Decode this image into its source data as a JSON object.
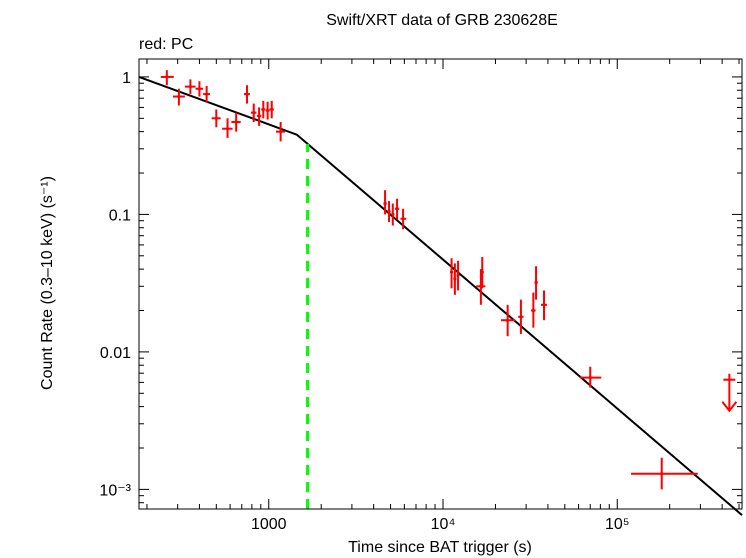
{
  "chart_data": {
    "type": "scatter",
    "title": "Swift/XRT data of GRB 230628E",
    "legend_note": "red: PC",
    "xlabel": "Time since BAT trigger (s)",
    "ylabel": "Count Rate (0.3–10 keV) (s⁻¹)",
    "xscale": "log",
    "yscale": "log",
    "xlim": [
      180,
      520000
    ],
    "ylim": [
      0.00072,
      1.35
    ],
    "x_ticks": [
      {
        "value": 1000,
        "label": "1000"
      },
      {
        "value": 10000,
        "label": "10⁴"
      },
      {
        "value": 100000,
        "label": "10⁵"
      }
    ],
    "y_ticks": [
      {
        "value": 1,
        "label": "1"
      },
      {
        "value": 0.1,
        "label": "0.1"
      },
      {
        "value": 0.01,
        "label": "0.01"
      },
      {
        "value": 0.001,
        "label": "10⁻³"
      }
    ],
    "series": [
      {
        "name": "PC",
        "color": "#ff0000",
        "points": [
          {
            "x": 260,
            "y": 1.0,
            "xerr": [
              240,
              285
            ],
            "yerr": [
              0.87,
              1.12
            ]
          },
          {
            "x": 305,
            "y": 0.72,
            "xerr": [
              282,
              330
            ],
            "yerr": [
              0.62,
              0.82
            ]
          },
          {
            "x": 355,
            "y": 0.85,
            "xerr": [
              330,
              380
            ],
            "yerr": [
              0.75,
              0.96
            ]
          },
          {
            "x": 400,
            "y": 0.82,
            "xerr": [
              380,
              420
            ],
            "yerr": [
              0.72,
              0.93
            ]
          },
          {
            "x": 440,
            "y": 0.75,
            "xerr": [
              420,
              460
            ],
            "yerr": [
              0.65,
              0.86
            ]
          },
          {
            "x": 500,
            "y": 0.5,
            "xerr": [
              470,
              530
            ],
            "yerr": [
              0.43,
              0.58
            ]
          },
          {
            "x": 580,
            "y": 0.42,
            "xerr": [
              540,
              620
            ],
            "yerr": [
              0.36,
              0.5
            ]
          },
          {
            "x": 650,
            "y": 0.47,
            "xerr": [
              610,
              690
            ],
            "yerr": [
              0.4,
              0.55
            ]
          },
          {
            "x": 750,
            "y": 0.75,
            "xerr": [
              720,
              780
            ],
            "yerr": [
              0.64,
              0.87
            ]
          },
          {
            "x": 820,
            "y": 0.55,
            "xerr": [
              790,
              850
            ],
            "yerr": [
              0.47,
              0.64
            ]
          },
          {
            "x": 880,
            "y": 0.52,
            "xerr": [
              855,
              905
            ],
            "yerr": [
              0.44,
              0.6
            ]
          },
          {
            "x": 930,
            "y": 0.58,
            "xerr": [
              905,
              955
            ],
            "yerr": [
              0.5,
              0.67
            ]
          },
          {
            "x": 985,
            "y": 0.57,
            "xerr": [
              960,
              1010
            ],
            "yerr": [
              0.49,
              0.66
            ]
          },
          {
            "x": 1040,
            "y": 0.58,
            "xerr": [
              1010,
              1070
            ],
            "yerr": [
              0.5,
              0.67
            ]
          },
          {
            "x": 1170,
            "y": 0.4,
            "xerr": [
              1100,
              1240
            ],
            "yerr": [
              0.34,
              0.47
            ]
          },
          {
            "x": 4650,
            "y": 0.12,
            "xerr": [
              4550,
              4750
            ],
            "yerr": [
              0.1,
              0.15
            ]
          },
          {
            "x": 4900,
            "y": 0.105,
            "xerr": [
              4800,
              5000
            ],
            "yerr": [
              0.088,
              0.125
            ]
          },
          {
            "x": 5150,
            "y": 0.1,
            "xerr": [
              5050,
              5250
            ],
            "yerr": [
              0.083,
              0.12
            ]
          },
          {
            "x": 5450,
            "y": 0.11,
            "xerr": [
              5300,
              5600
            ],
            "yerr": [
              0.092,
              0.13
            ]
          },
          {
            "x": 5900,
            "y": 0.093,
            "xerr": [
              5700,
              6150
            ],
            "yerr": [
              0.078,
              0.11
            ]
          },
          {
            "x": 11200,
            "y": 0.038,
            "xerr": [
              11000,
              11400
            ],
            "yerr": [
              0.029,
              0.048
            ]
          },
          {
            "x": 11700,
            "y": 0.034,
            "xerr": [
              11500,
              11900
            ],
            "yerr": [
              0.026,
              0.044
            ]
          },
          {
            "x": 12200,
            "y": 0.036,
            "xerr": [
              12000,
              12400
            ],
            "yerr": [
              0.028,
              0.046
            ]
          },
          {
            "x": 16500,
            "y": 0.03,
            "xerr": [
              15500,
              17500
            ],
            "yerr": [
              0.022,
              0.04
            ]
          },
          {
            "x": 16800,
            "y": 0.038,
            "xerr": [
              16600,
              17000
            ],
            "yerr": [
              0.029,
              0.049
            ]
          },
          {
            "x": 23500,
            "y": 0.017,
            "xerr": [
              21500,
              26000
            ],
            "yerr": [
              0.013,
              0.022
            ]
          },
          {
            "x": 28000,
            "y": 0.018,
            "xerr": [
              27000,
              29000
            ],
            "yerr": [
              0.0135,
              0.024
            ]
          },
          {
            "x": 33000,
            "y": 0.02,
            "xerr": [
              32000,
              34000
            ],
            "yerr": [
              0.015,
              0.027
            ]
          },
          {
            "x": 34200,
            "y": 0.032,
            "xerr": [
              33500,
              35000
            ],
            "yerr": [
              0.024,
              0.042
            ]
          },
          {
            "x": 38000,
            "y": 0.022,
            "xerr": [
              36500,
              39500
            ],
            "yerr": [
              0.017,
              0.028
            ]
          },
          {
            "x": 70000,
            "y": 0.0065,
            "xerr": [
              61000,
              81000
            ],
            "yerr": [
              0.0055,
              0.0078
            ]
          },
          {
            "x": 180000,
            "y": 0.0013,
            "xerr": [
              120000,
              290000
            ],
            "yerr": [
              0.001,
              0.0017
            ]
          }
        ],
        "upper_limits": [
          {
            "x": 440000,
            "y": 0.0048
          }
        ]
      }
    ],
    "model": {
      "name": "broken power-law fit",
      "color": "#000000",
      "points": [
        {
          "x": 180,
          "y": 1.0
        },
        {
          "x": 1450,
          "y": 0.38
        },
        {
          "x": 520000,
          "y": 0.00065
        }
      ]
    },
    "break_marker": {
      "x": 1670,
      "color": "#00ff00",
      "style": "dashed"
    }
  }
}
